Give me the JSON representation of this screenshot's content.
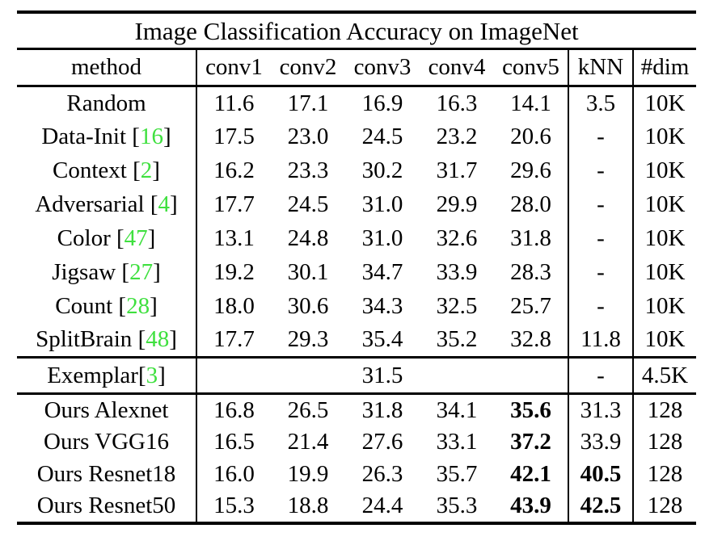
{
  "title": "Image Classification Accuracy on ImageNet",
  "columns": [
    "method",
    "conv1",
    "conv2",
    "conv3",
    "conv4",
    "conv5",
    "kNN",
    "#dim"
  ],
  "colors": {
    "citation_green": "#3fe03f",
    "text": "#000000",
    "background": "#ffffff"
  },
  "sections": {
    "baselines": [
      {
        "name": "Random",
        "cite": "",
        "sep": "",
        "values": [
          "11.6",
          "17.1",
          "16.9",
          "16.3",
          "14.1"
        ],
        "bold_conv5": false,
        "knn": "3.5",
        "bold_knn": false,
        "dim": "10K"
      },
      {
        "name": "Data-Init",
        "cite": "16",
        "sep": " ",
        "values": [
          "17.5",
          "23.0",
          "24.5",
          "23.2",
          "20.6"
        ],
        "bold_conv5": false,
        "knn": "-",
        "bold_knn": false,
        "dim": "10K"
      },
      {
        "name": "Context",
        "cite": "2",
        "sep": " ",
        "values": [
          "16.2",
          "23.3",
          "30.2",
          "31.7",
          "29.6"
        ],
        "bold_conv5": false,
        "knn": "-",
        "bold_knn": false,
        "dim": "10K"
      },
      {
        "name": "Adversarial",
        "cite": "4",
        "sep": " ",
        "values": [
          "17.7",
          "24.5",
          "31.0",
          "29.9",
          "28.0"
        ],
        "bold_conv5": false,
        "knn": "-",
        "bold_knn": false,
        "dim": "10K"
      },
      {
        "name": "Color",
        "cite": "47",
        "sep": " ",
        "values": [
          "13.1",
          "24.8",
          "31.0",
          "32.6",
          "31.8"
        ],
        "bold_conv5": false,
        "knn": "-",
        "bold_knn": false,
        "dim": "10K"
      },
      {
        "name": "Jigsaw",
        "cite": "27",
        "sep": " ",
        "values": [
          "19.2",
          "30.1",
          "34.7",
          "33.9",
          "28.3"
        ],
        "bold_conv5": false,
        "knn": "-",
        "bold_knn": false,
        "dim": "10K"
      },
      {
        "name": "Count",
        "cite": "28",
        "sep": " ",
        "values": [
          "18.0",
          "30.6",
          "34.3",
          "32.5",
          "25.7"
        ],
        "bold_conv5": false,
        "knn": "-",
        "bold_knn": false,
        "dim": "10K"
      },
      {
        "name": "SplitBrain",
        "cite": "48",
        "sep": " ",
        "values": [
          "17.7",
          "29.3",
          "35.4",
          "35.2",
          "32.8"
        ],
        "bold_conv5": false,
        "knn": "11.8",
        "bold_knn": false,
        "dim": "10K"
      }
    ],
    "exemplar": {
      "name": "Exemplar",
      "cite": "3",
      "sep": "",
      "merged_value": "31.5",
      "knn": "-",
      "dim": "4.5K"
    },
    "ours": [
      {
        "name": "Ours Alexnet",
        "cite": "",
        "sep": "",
        "values": [
          "16.8",
          "26.5",
          "31.8",
          "34.1",
          "35.6"
        ],
        "bold_conv5": true,
        "knn": "31.3",
        "bold_knn": false,
        "dim": "128"
      },
      {
        "name": "Ours VGG16",
        "cite": "",
        "sep": "",
        "values": [
          "16.5",
          "21.4",
          "27.6",
          "33.1",
          "37.2"
        ],
        "bold_conv5": true,
        "knn": "33.9",
        "bold_knn": false,
        "dim": "128"
      },
      {
        "name": "Ours Resnet18",
        "cite": "",
        "sep": "",
        "values": [
          "16.0",
          "19.9",
          "26.3",
          "35.7",
          "42.1"
        ],
        "bold_conv5": true,
        "knn": "40.5",
        "bold_knn": true,
        "dim": "128"
      },
      {
        "name": "Ours Resnet50",
        "cite": "",
        "sep": "",
        "values": [
          "15.3",
          "18.8",
          "24.4",
          "35.3",
          "43.9"
        ],
        "bold_conv5": true,
        "knn": "42.5",
        "bold_knn": true,
        "dim": "128"
      }
    ]
  }
}
